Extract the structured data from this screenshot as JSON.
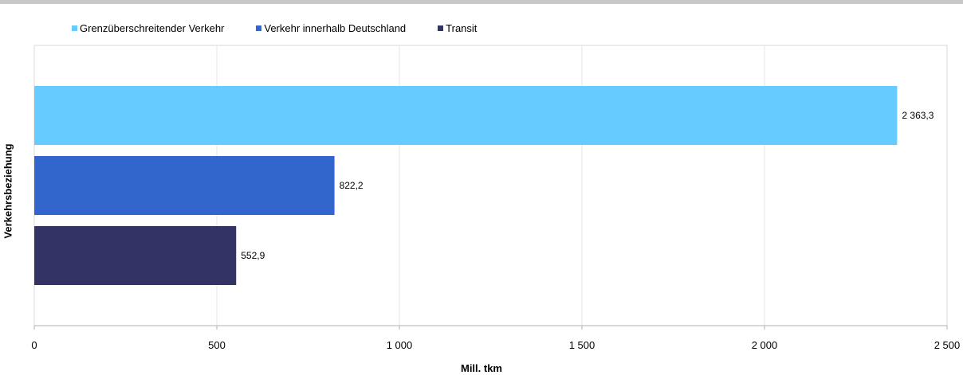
{
  "chart_data": {
    "type": "bar",
    "orientation": "horizontal",
    "categories": [
      "Grenzüberschreitender Verkehr",
      "Verkehr innerhalb Deutschland",
      "Transit"
    ],
    "values": [
      2363.3,
      822.2,
      552.9
    ],
    "value_labels": [
      "2 363,3",
      "822,2",
      "552,9"
    ],
    "colors": [
      "#66ccff",
      "#3366cc",
      "#333366"
    ],
    "xlabel": "Mill. tkm",
    "ylabel": "Verkehrsbeziehung",
    "xlim": [
      0,
      2500
    ],
    "x_ticks": [
      0,
      500,
      1000,
      1500,
      2000,
      2500
    ],
    "x_tick_labels": [
      "0",
      "500",
      "1 000",
      "1 500",
      "2 000",
      "2 500"
    ],
    "grid": "vertical",
    "legend_position": "top"
  }
}
